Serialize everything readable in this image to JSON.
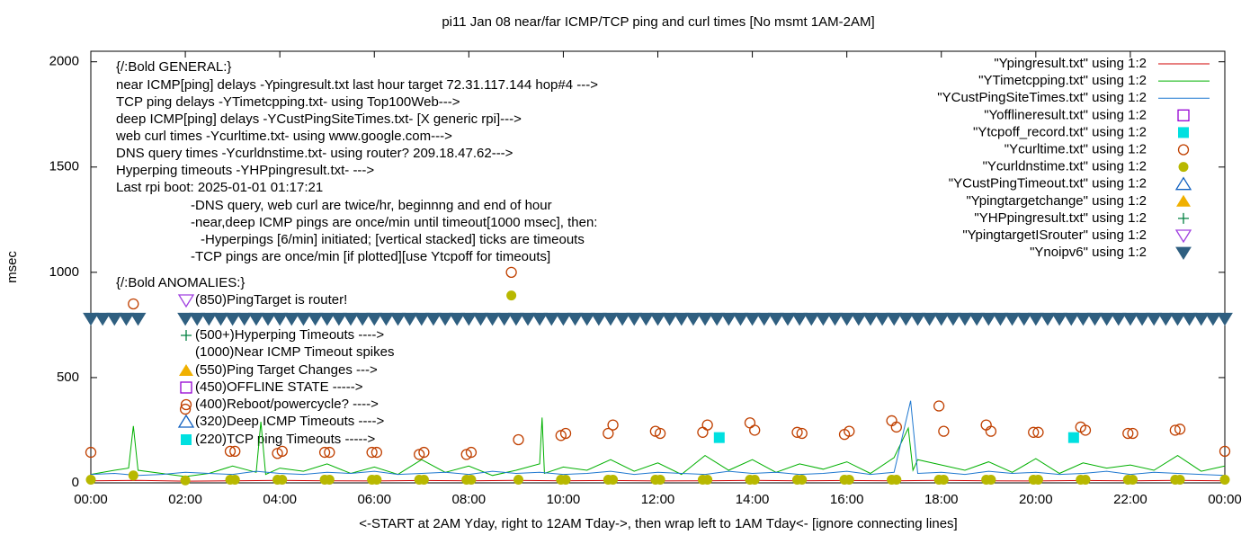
{
  "chart_data": {
    "type": "line",
    "title": "pi11 Jan 08  near/far ICMP/TCP ping and curl times [No msmt 1AM-2AM]",
    "xlabel": "<-START at 2AM Yday, right to 12AM Tday->, then wrap left to 1AM Tday<- [ignore connecting lines]",
    "ylabel": "msec",
    "xlim": [
      0,
      24
    ],
    "ylim": [
      0,
      2050
    ],
    "xticks": [
      {
        "value": 0,
        "label": "00:00"
      },
      {
        "value": 2,
        "label": "02:00"
      },
      {
        "value": 4,
        "label": "04:00"
      },
      {
        "value": 6,
        "label": "06:00"
      },
      {
        "value": 8,
        "label": "08:00"
      },
      {
        "value": 10,
        "label": "10:00"
      },
      {
        "value": 12,
        "label": "12:00"
      },
      {
        "value": 14,
        "label": "14:00"
      },
      {
        "value": 16,
        "label": "16:00"
      },
      {
        "value": 18,
        "label": "18:00"
      },
      {
        "value": 20,
        "label": "20:00"
      },
      {
        "value": 22,
        "label": "22:00"
      },
      {
        "value": 24,
        "label": "00:00"
      }
    ],
    "yticks": [
      0,
      500,
      1000,
      1500,
      2000
    ],
    "grid": false,
    "legend": "top-right",
    "annotations": [
      "{/:Bold GENERAL:}",
      "near ICMP[ping] delays -Ypingresult.txt last hour target 72.31.117.144 hop#4 --->",
      "TCP ping delays -YTimetcpping.txt- using Top100Web--->",
      "deep ICMP[ping] delays -YCustPingSiteTimes.txt- [X generic rpi]--->",
      "web curl times -Ycurltime.txt- using www.google.com--->",
      "DNS query times -Ycurldnstime.txt- using router? 209.18.47.62--->",
      "Hyperping timeouts -YHPpingresult.txt- --->",
      "Last rpi boot: 2025-01-01 01:17:21",
      "-DNS query, web curl are twice/hr, beginnng and end of hour",
      "-near,deep ICMP pings are once/min until timeout[1000 msec], then:",
      "-Hyperpings [6/min] initiated; [vertical stacked] ticks are timeouts",
      "-TCP pings are once/min [if plotted][use Ytcpoff for timeouts]",
      "{/:Bold ANOMALIES:}",
      "(850)PingTarget is router!",
      "(500+)Hyperping Timeouts ---->",
      "(1000)Near ICMP Timeout spikes",
      "(550)Ping Target Changes --->",
      "(450)OFFLINE STATE ----->",
      "(400)Reboot/powercycle? ---->",
      "(320)Deep ICMP Timeouts ---->",
      "(220)TCP ping Timeouts ----->"
    ],
    "series": [
      {
        "name": "\"Ypingresult.txt\" using 1:2",
        "color": "#d00000",
        "marker": "line",
        "x": [
          0,
          1,
          2,
          3,
          4,
          5,
          6,
          7,
          8,
          9,
          10,
          11,
          12,
          13,
          14,
          15,
          16,
          17,
          18,
          19,
          20,
          21,
          22,
          23,
          24
        ],
        "values": [
          10,
          12,
          8,
          10,
          12,
          10,
          9,
          11,
          10,
          12,
          10,
          11,
          9,
          10,
          12,
          10,
          11,
          10,
          12,
          10,
          9,
          11,
          10,
          12,
          10
        ]
      },
      {
        "name": "\"YTimetcpping.txt\" using 1:2",
        "color": "#00b000",
        "marker": "line",
        "x": [
          0,
          0.5,
          0.8,
          0.9,
          1.0,
          2.0,
          2.5,
          3.0,
          3.5,
          3.6,
          3.7,
          4.0,
          4.5,
          5.0,
          5.5,
          6.0,
          6.5,
          7.0,
          7.5,
          8.0,
          8.5,
          9.0,
          9.5,
          9.55,
          9.6,
          10,
          10.5,
          11,
          11.5,
          12,
          12.5,
          13,
          13.5,
          14,
          14.5,
          15,
          15.5,
          16,
          16.5,
          17,
          17.3,
          17.4,
          17.5,
          18,
          18.5,
          19,
          19.5,
          20,
          20.5,
          21,
          21.5,
          22,
          22.5,
          23,
          23.5,
          24
        ],
        "values": [
          40,
          60,
          70,
          270,
          60,
          30,
          45,
          80,
          50,
          290,
          40,
          70,
          55,
          90,
          45,
          75,
          40,
          110,
          50,
          80,
          35,
          60,
          90,
          310,
          45,
          75,
          60,
          110,
          55,
          95,
          40,
          130,
          60,
          110,
          50,
          90,
          65,
          100,
          45,
          120,
          260,
          60,
          110,
          85,
          60,
          100,
          50,
          115,
          45,
          95,
          70,
          85,
          60,
          130,
          55,
          80
        ]
      },
      {
        "name": "\"YCustPingSiteTimes.txt\" using 1:2",
        "color": "#1f78d0",
        "marker": "line",
        "x": [
          0,
          0.5,
          1,
          1.5,
          2,
          2.5,
          3,
          3.5,
          4,
          4.5,
          5,
          5.5,
          6,
          6.5,
          7,
          7.5,
          8,
          8.5,
          9,
          9.5,
          10,
          10.5,
          11,
          11.5,
          12,
          12.5,
          13,
          13.5,
          14,
          14.5,
          15,
          15.5,
          16,
          16.5,
          17,
          17.35,
          17.5,
          18,
          18.5,
          19,
          19.5,
          20,
          20.5,
          21,
          21.5,
          22,
          22.5,
          23,
          23.5,
          24
        ],
        "values": [
          40,
          45,
          35,
          40,
          50,
          45,
          40,
          55,
          45,
          40,
          50,
          45,
          55,
          40,
          45,
          50,
          40,
          55,
          45,
          50,
          40,
          45,
          55,
          40,
          50,
          45,
          40,
          55,
          45,
          50,
          40,
          45,
          55,
          40,
          50,
          390,
          45,
          50,
          40,
          55,
          45,
          50,
          40,
          45,
          55,
          40,
          50,
          45,
          40,
          35
        ]
      },
      {
        "name": "\"Yofflineresult.txt\" using 1:2",
        "color": "#9400d3",
        "marker": "square-open",
        "x": [],
        "values": []
      },
      {
        "name": "\"Ytcpoff_record.txt\" using 1:2",
        "color": "#00e0e0",
        "marker": "square",
        "x": [
          13.3,
          20.8
        ],
        "values": [
          215,
          215
        ]
      },
      {
        "name": "\"Ycurltime.txt\" using 1:2",
        "color": "#c04000",
        "marker": "circle-open",
        "x": [
          0,
          0.9,
          2.0,
          2.95,
          3.05,
          3.95,
          4.05,
          4.95,
          5.05,
          5.95,
          6.05,
          6.95,
          7.05,
          7.95,
          8.05,
          8.9,
          9.05,
          9.95,
          10.05,
          10.95,
          11.05,
          11.95,
          12.05,
          12.95,
          13.05,
          13.95,
          14.05,
          14.95,
          15.05,
          15.95,
          16.05,
          16.95,
          17.05,
          17.95,
          18.05,
          18.95,
          19.05,
          19.95,
          20.05,
          20.95,
          21.05,
          21.95,
          22.05,
          22.95,
          23.05,
          24
        ],
        "values": [
          145,
          850,
          350,
          150,
          150,
          140,
          150,
          145,
          145,
          145,
          145,
          135,
          145,
          135,
          145,
          1000,
          205,
          225,
          235,
          235,
          275,
          245,
          235,
          240,
          275,
          285,
          250,
          240,
          235,
          230,
          245,
          295,
          265,
          365,
          245,
          275,
          245,
          240,
          240,
          265,
          250,
          235,
          235,
          250,
          255,
          150
        ]
      },
      {
        "name": "\"Ycurldnstime.txt\" using 1:2",
        "color": "#b8b800",
        "marker": "circle",
        "x": [
          0,
          0.9,
          2.0,
          2.95,
          3.05,
          3.95,
          4.05,
          4.95,
          5.05,
          5.95,
          6.05,
          6.95,
          7.05,
          7.95,
          8.05,
          8.9,
          9.05,
          9.95,
          10.05,
          10.95,
          11.05,
          11.95,
          12.05,
          12.95,
          13.05,
          13.95,
          14.05,
          14.95,
          15.05,
          15.95,
          16.05,
          16.95,
          17.05,
          17.95,
          18.05,
          18.95,
          19.05,
          19.95,
          20.05,
          20.95,
          21.05,
          21.95,
          22.05,
          22.95,
          23.05,
          24
        ],
        "values": [
          15,
          35,
          12,
          15,
          15,
          15,
          15,
          15,
          15,
          15,
          15,
          15,
          15,
          15,
          15,
          890,
          15,
          15,
          15,
          15,
          15,
          15,
          15,
          15,
          15,
          15,
          15,
          15,
          15,
          15,
          15,
          15,
          15,
          15,
          15,
          15,
          15,
          15,
          15,
          15,
          15,
          15,
          15,
          15,
          15,
          15
        ]
      },
      {
        "name": "\"YCustPingTimeout.txt\" using 1:2",
        "color": "#1060c0",
        "marker": "triangle-open",
        "x": [],
        "values": []
      },
      {
        "name": "\"Ypingtargetchange\" using 1:2",
        "color": "#f0b000",
        "marker": "triangle",
        "x": [],
        "values": []
      },
      {
        "name": "\"YHPpingresult.txt\" using 1:2",
        "color": "#008040",
        "marker": "plus",
        "x": [],
        "values": []
      },
      {
        "name": "\"YpingtargetISrouter\" using 1:2",
        "color": "#a040e0",
        "marker": "triangle-down-open",
        "x": [],
        "values": []
      },
      {
        "name": "\"Ynoipv6\" using 1:2",
        "color": "#2f5f80",
        "marker": "triangle-down",
        "x": [
          0,
          0.25,
          0.5,
          0.75,
          1.0,
          2,
          2.25,
          2.5,
          2.75,
          3,
          3.25,
          3.5,
          3.75,
          4,
          4.25,
          4.5,
          4.75,
          5,
          5.25,
          5.5,
          5.75,
          6,
          6.25,
          6.5,
          6.75,
          7,
          7.25,
          7.5,
          7.75,
          8,
          8.25,
          8.5,
          8.75,
          9,
          9.25,
          9.5,
          9.75,
          10,
          10.25,
          10.5,
          10.75,
          11,
          11.25,
          11.5,
          11.75,
          12,
          12.25,
          12.5,
          12.75,
          13,
          13.25,
          13.5,
          13.75,
          14,
          14.25,
          14.5,
          14.75,
          15,
          15.25,
          15.5,
          15.75,
          16,
          16.25,
          16.5,
          16.75,
          17,
          17.25,
          17.5,
          17.75,
          18,
          18.25,
          18.5,
          18.75,
          19,
          19.25,
          19.5,
          19.75,
          20,
          20.25,
          20.5,
          20.75,
          21,
          21.25,
          21.5,
          21.75,
          22,
          22.25,
          22.5,
          22.75,
          23,
          23.25,
          23.5,
          23.75,
          24
        ],
        "values": [
          780,
          780,
          780,
          780,
          780,
          780,
          780,
          780,
          780,
          780,
          780,
          780,
          780,
          780,
          780,
          780,
          780,
          780,
          780,
          780,
          780,
          780,
          780,
          780,
          780,
          780,
          780,
          780,
          780,
          780,
          780,
          780,
          780,
          780,
          780,
          780,
          780,
          780,
          780,
          780,
          780,
          780,
          780,
          780,
          780,
          780,
          780,
          780,
          780,
          780,
          780,
          780,
          780,
          780,
          780,
          780,
          780,
          780,
          780,
          780,
          780,
          780,
          780,
          780,
          780,
          780,
          780,
          780,
          780,
          780,
          780,
          780,
          780,
          780,
          780,
          780,
          780,
          780,
          780,
          780,
          780,
          780,
          780,
          780,
          780,
          780,
          780,
          780,
          780,
          780,
          780,
          780,
          780,
          780
        ]
      }
    ]
  }
}
